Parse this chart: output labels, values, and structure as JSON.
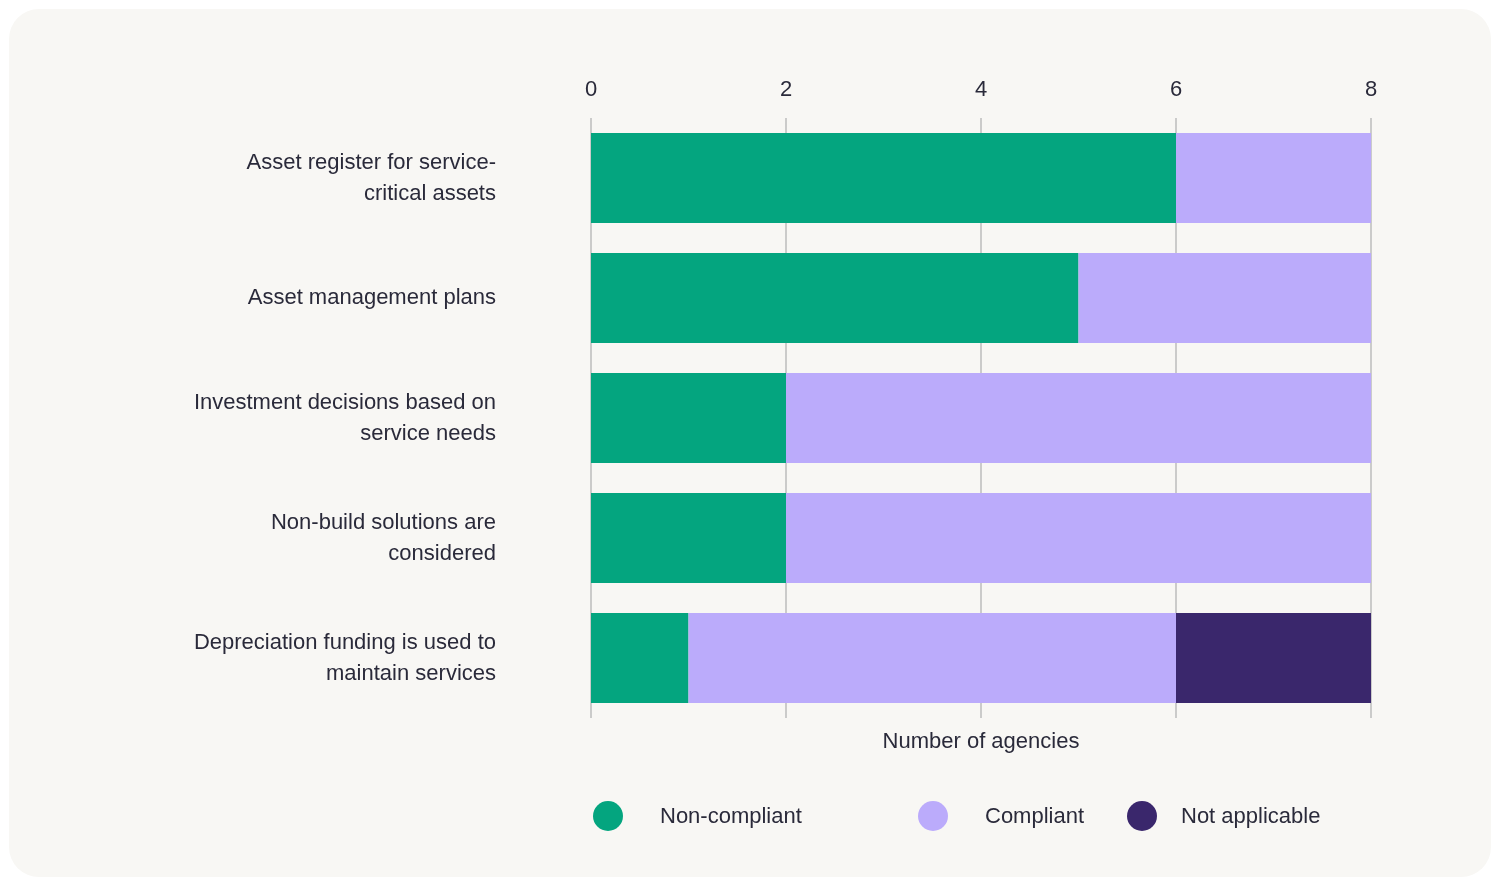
{
  "chart_data": {
    "type": "bar",
    "orientation": "horizontal",
    "stacked": true,
    "xlabel": "Number of agencies",
    "categories": [
      "Asset register for service-critical assets",
      "Asset management plans",
      "Investment decisions based on service needs",
      "Non-build solutions are considered",
      "Depreciation funding is used to maintain services"
    ],
    "series": [
      {
        "name": "Non-compliant",
        "color": "#04a57f",
        "values": [
          6,
          5,
          2,
          2,
          1
        ]
      },
      {
        "name": "Compliant",
        "color": "#bbabfb",
        "values": [
          2,
          3,
          6,
          6,
          5
        ]
      },
      {
        "name": "Not applicable",
        "color": "#3a276c",
        "values": [
          0,
          0,
          0,
          0,
          2
        ]
      }
    ],
    "xlim": [
      0,
      8
    ],
    "xticks": [
      0,
      2,
      4,
      6,
      8
    ],
    "grid": "x",
    "legend": "bottom"
  }
}
